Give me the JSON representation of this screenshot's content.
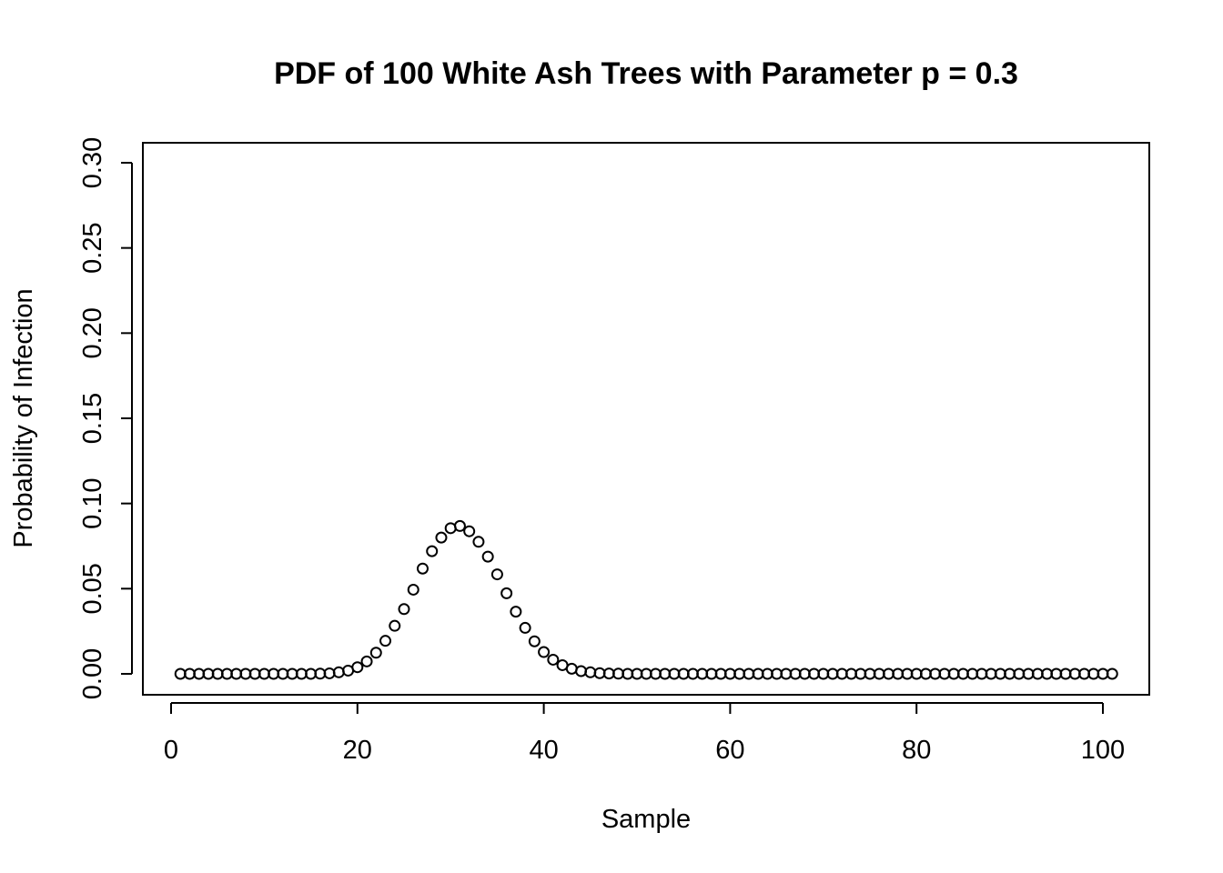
{
  "chart_data": {
    "type": "scatter",
    "title": "PDF of 100 White Ash Trees with Parameter p = 0.3",
    "xlabel": "Sample",
    "ylabel": "Probability of Infection",
    "xlim": [
      0,
      101
    ],
    "ylim": [
      0,
      0.3
    ],
    "x_ticks": [
      "0",
      "20",
      "40",
      "60",
      "80",
      "100"
    ],
    "y_ticks": [
      "0.00",
      "0.05",
      "0.10",
      "0.15",
      "0.20",
      "0.25",
      "0.30"
    ],
    "x": [
      1,
      2,
      3,
      4,
      5,
      6,
      7,
      8,
      9,
      10,
      11,
      12,
      13,
      14,
      15,
      16,
      17,
      18,
      19,
      20,
      21,
      22,
      23,
      24,
      25,
      26,
      27,
      28,
      29,
      30,
      31,
      32,
      33,
      34,
      35,
      36,
      37,
      38,
      39,
      40,
      41,
      42,
      43,
      44,
      45,
      46,
      47,
      48,
      49,
      50,
      51,
      52,
      53,
      54,
      55,
      56,
      57,
      58,
      59,
      60,
      61,
      62,
      63,
      64,
      65,
      66,
      67,
      68,
      69,
      70,
      71,
      72,
      73,
      74,
      75,
      76,
      77,
      78,
      79,
      80,
      81,
      82,
      83,
      84,
      85,
      86,
      87,
      88,
      89,
      90,
      91,
      92,
      93,
      94,
      95,
      96,
      97,
      98,
      99,
      100,
      101
    ],
    "y": [
      0,
      0,
      0,
      0,
      0,
      0,
      0,
      0,
      0,
      0,
      0,
      0,
      0,
      0,
      0,
      0.0001,
      0.0003,
      0.0009,
      0.0019,
      0.0039,
      0.0073,
      0.0124,
      0.0194,
      0.0282,
      0.038,
      0.0494,
      0.0618,
      0.072,
      0.08,
      0.0855,
      0.0868,
      0.0837,
      0.0775,
      0.0688,
      0.0584,
      0.0473,
      0.0365,
      0.027,
      0.0191,
      0.0128,
      0.0083,
      0.0051,
      0.003,
      0.0016,
      0.0009,
      0.0004,
      0.0002,
      0.0001,
      0,
      0,
      0,
      0,
      0,
      0,
      0,
      0,
      0,
      0,
      0,
      0,
      0,
      0,
      0,
      0,
      0,
      0,
      0,
      0,
      0,
      0,
      0,
      0,
      0,
      0,
      0,
      0,
      0,
      0,
      0,
      0,
      0,
      0,
      0,
      0,
      0,
      0,
      0,
      0,
      0,
      0,
      0,
      0,
      0,
      0,
      0,
      0,
      0,
      0,
      0,
      0,
      0
    ]
  }
}
